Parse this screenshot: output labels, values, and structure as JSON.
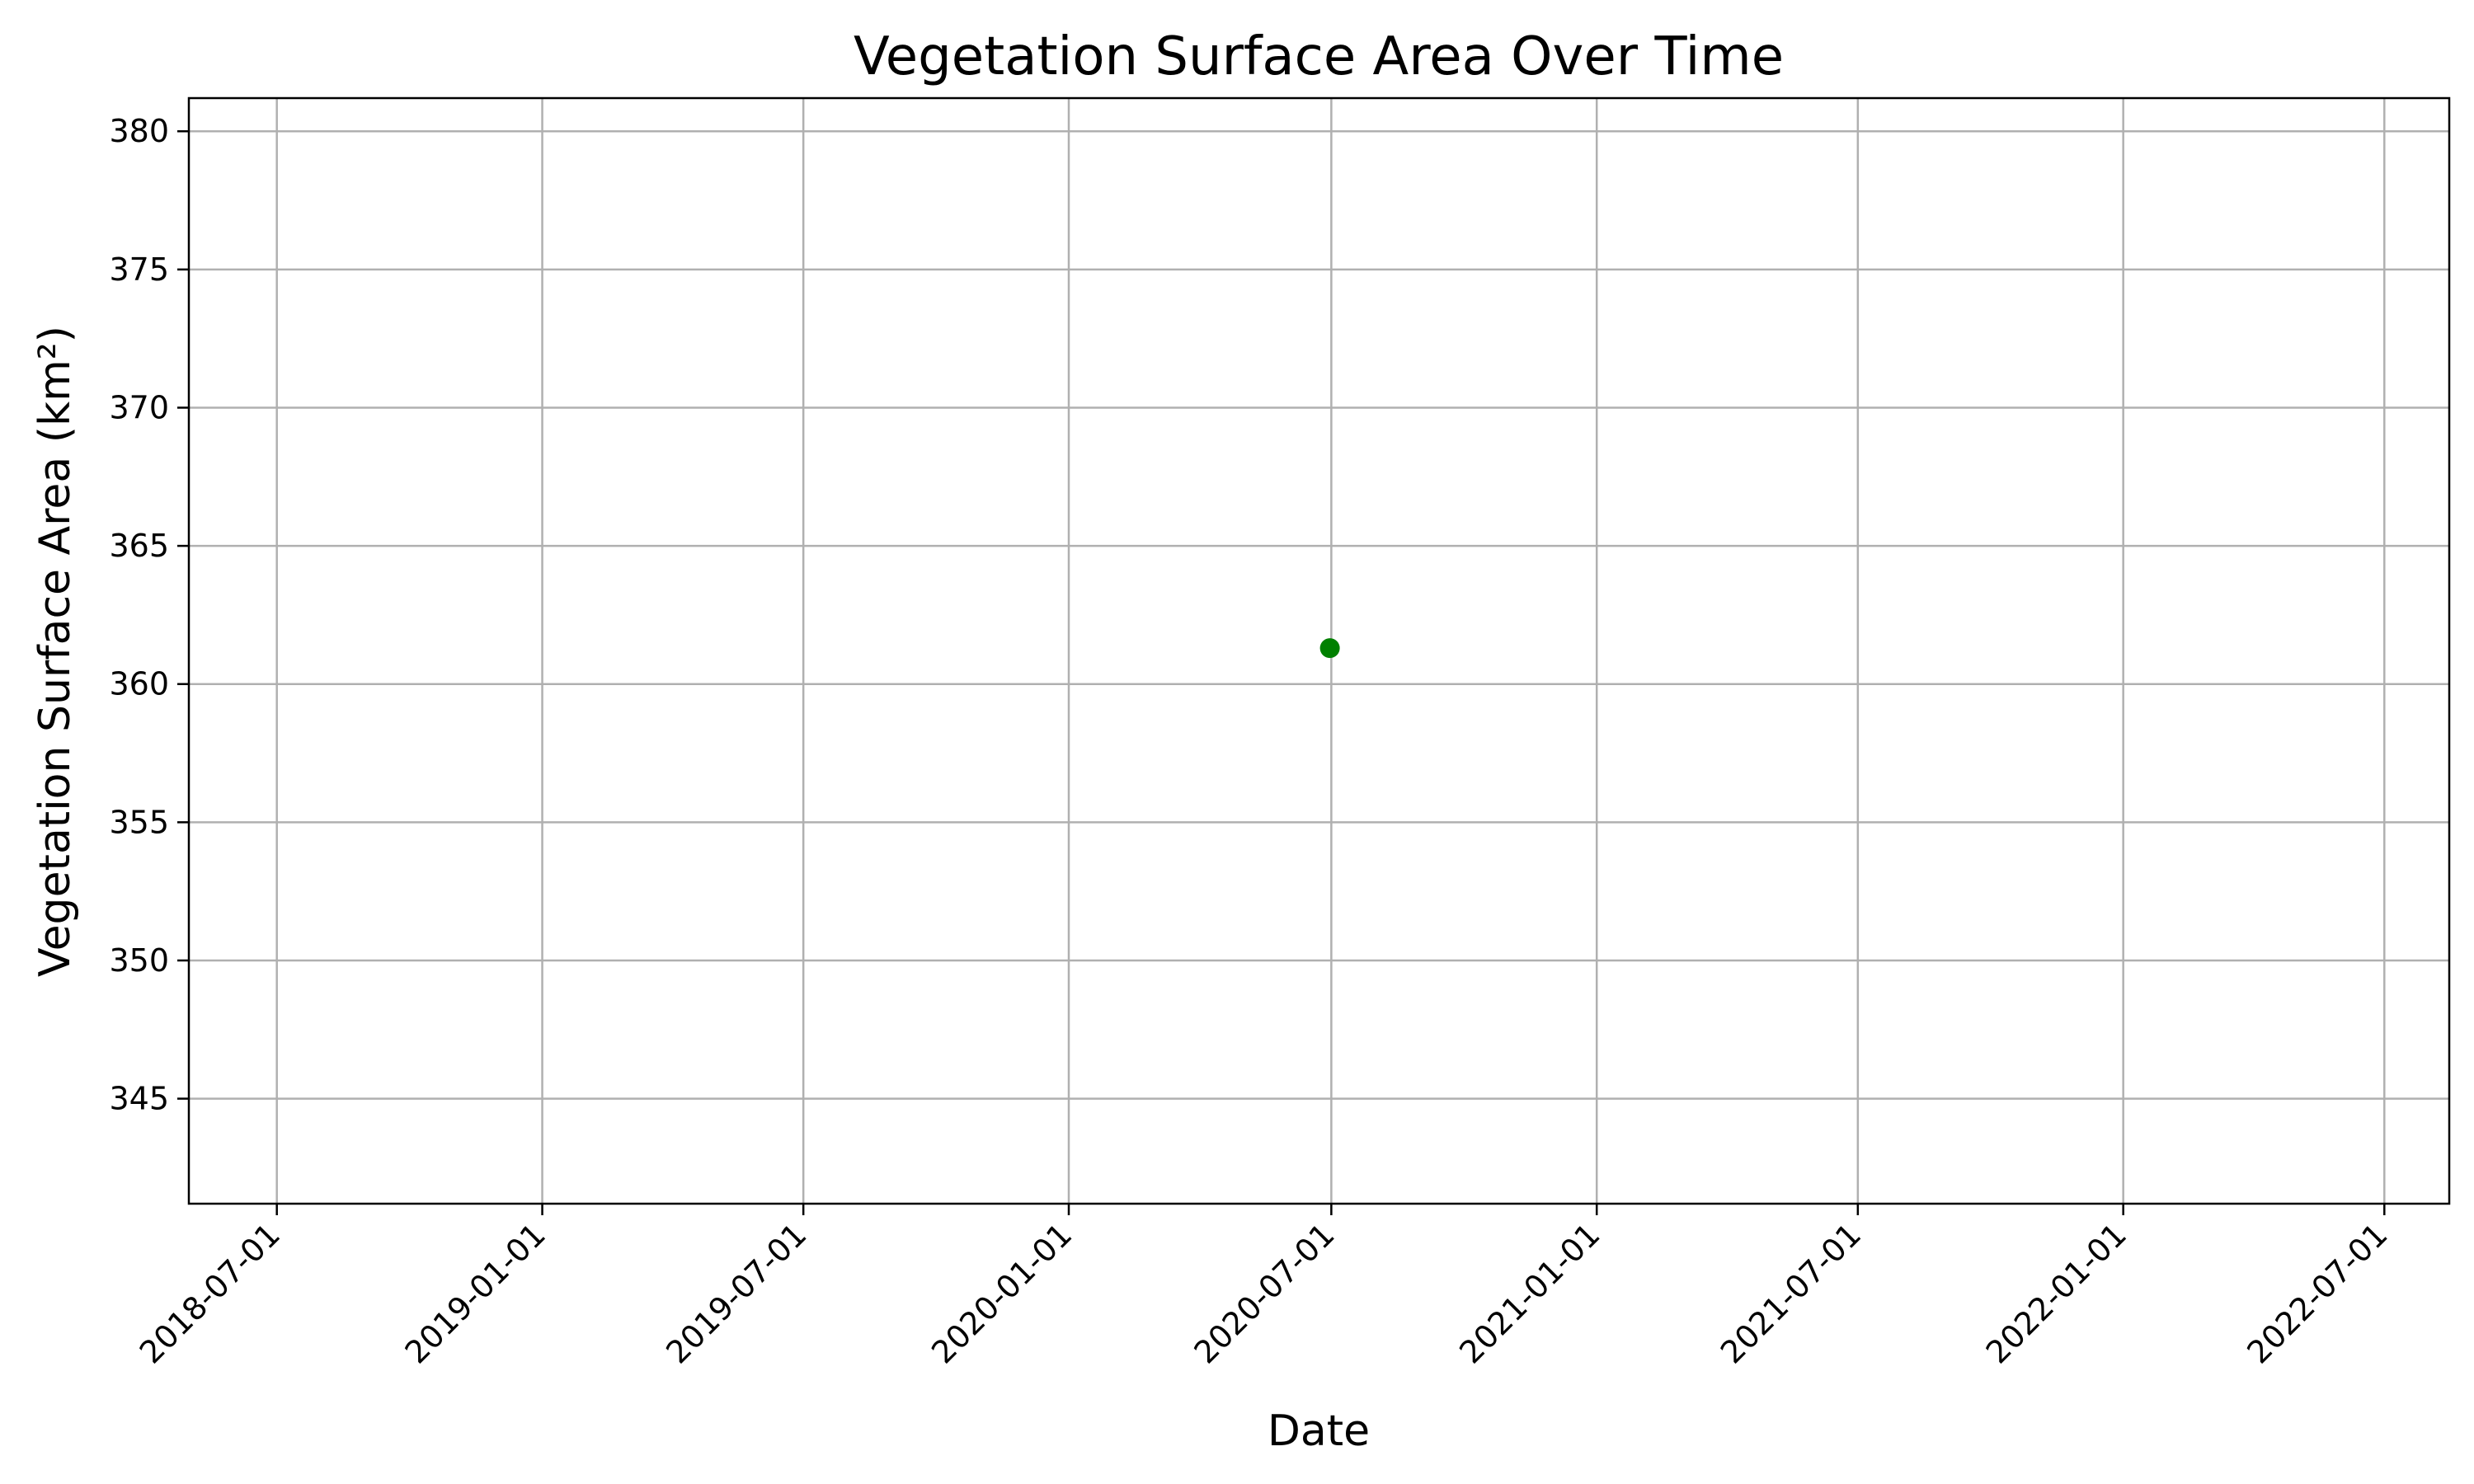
{
  "chart_data": {
    "type": "line",
    "title": "Vegetation Surface Area Over Time",
    "xlabel": "Date",
    "ylabel": "Vegetation Surface Area (km²)",
    "x_axis_type": "date",
    "xlim": [
      "2018-05-01",
      "2022-08-15"
    ],
    "ylim": [
      341.2,
      381.2
    ],
    "xticks": [
      "2018-07-01",
      "2019-01-01",
      "2019-07-01",
      "2020-01-01",
      "2020-07-01",
      "2021-01-01",
      "2021-07-01",
      "2022-01-01",
      "2022-07-01"
    ],
    "yticks": [
      345,
      350,
      355,
      360,
      365,
      370,
      375,
      380
    ],
    "grid": true,
    "tick_label_rotation": 45,
    "series": [
      {
        "color": "#008000",
        "marker": "circle",
        "points": [
          {
            "x": "2020-06-30",
            "y": 361.3
          }
        ]
      }
    ]
  }
}
